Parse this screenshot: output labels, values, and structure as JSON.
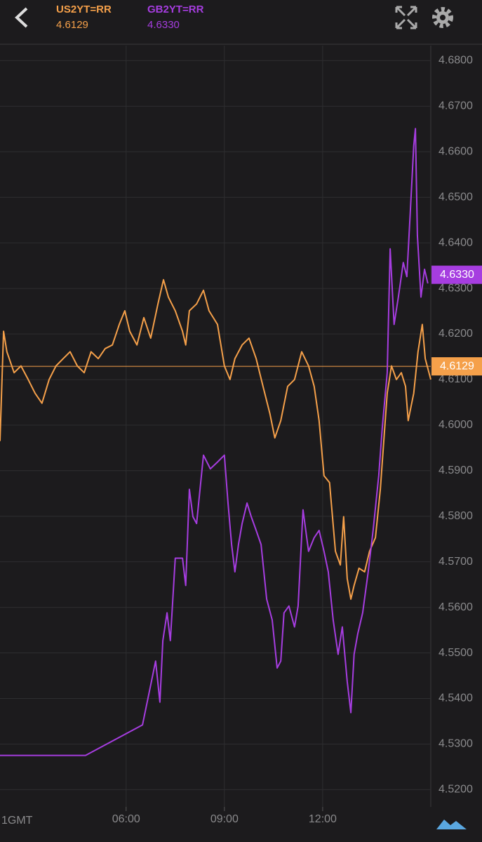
{
  "chart_data": {
    "type": "line",
    "series": [
      {
        "name": "US2YT=RR",
        "color": "#f5a04a",
        "current": 4.6129,
        "x": [
          2.15,
          2.26,
          2.36,
          2.58,
          2.79,
          3.01,
          3.22,
          3.43,
          3.65,
          3.86,
          4.08,
          4.29,
          4.51,
          4.72,
          4.93,
          5.15,
          5.36,
          5.58,
          5.79,
          5.96,
          6.11,
          6.33,
          6.54,
          6.75,
          6.97,
          7.14,
          7.29,
          7.5,
          7.72,
          7.82,
          7.93,
          8.15,
          8.36,
          8.53,
          8.79,
          9.0,
          9.17,
          9.32,
          9.54,
          9.75,
          9.97,
          10.18,
          10.39,
          10.54,
          10.72,
          10.93,
          11.14,
          11.36,
          11.57,
          11.74,
          11.89,
          12.04,
          12.21,
          12.39,
          12.54,
          12.64,
          12.75,
          12.86,
          12.96,
          13.11,
          13.28,
          13.43,
          13.61,
          13.76,
          13.88,
          13.97,
          14.1,
          14.25,
          14.4,
          14.53,
          14.61,
          14.78,
          14.91,
          15.04,
          15.13,
          15.3
        ],
        "values": [
          4.5965,
          4.6206,
          4.6161,
          4.6115,
          4.613,
          4.61,
          4.607,
          4.6048,
          4.61,
          4.613,
          4.6146,
          4.6161,
          4.613,
          4.6115,
          4.6161,
          4.6146,
          4.6168,
          4.6176,
          4.6221,
          4.6251,
          4.6206,
          4.6176,
          4.6236,
          4.6191,
          4.6266,
          4.6319,
          4.6281,
          4.6251,
          4.6206,
          4.6176,
          4.6251,
          4.6266,
          4.6296,
          4.6251,
          4.6221,
          4.613,
          4.61,
          4.6146,
          4.6176,
          4.6191,
          4.6146,
          4.6085,
          4.6025,
          4.5972,
          4.601,
          4.6085,
          4.61,
          4.6161,
          4.613,
          4.6085,
          4.601,
          4.5889,
          4.5874,
          4.5723,
          4.5693,
          4.5799,
          4.5663,
          4.5618,
          4.5648,
          4.5686,
          4.5678,
          4.5723,
          4.5753,
          4.5859,
          4.598,
          4.607,
          4.613,
          4.61,
          4.6115,
          4.6085,
          4.601,
          4.607,
          4.6161,
          4.6221,
          4.6146,
          4.61
        ]
      },
      {
        "name": "GB2YT=RR",
        "color": "#a63de0",
        "current": 4.633,
        "current_label": "4.6330",
        "x": [
          2.15,
          4.76,
          6.5,
          6.9,
          7.03,
          7.12,
          7.25,
          7.35,
          7.5,
          7.72,
          7.82,
          7.93,
          8.04,
          8.15,
          8.36,
          8.57,
          8.79,
          9.0,
          9.11,
          9.22,
          9.32,
          9.43,
          9.54,
          9.69,
          9.82,
          9.97,
          10.12,
          10.29,
          10.46,
          10.61,
          10.72,
          10.82,
          10.97,
          11.14,
          11.25,
          11.4,
          11.57,
          11.74,
          11.89,
          12.04,
          12.17,
          12.32,
          12.47,
          12.6,
          12.75,
          12.86,
          12.96,
          13.07,
          13.22,
          13.39,
          13.54,
          13.71,
          13.82,
          13.97,
          14.06,
          14.18,
          14.31,
          14.46,
          14.57,
          14.68,
          14.78,
          14.83,
          14.89,
          15.0,
          15.11,
          15.21
        ],
        "values": [
          4.5275,
          4.5275,
          4.5342,
          4.5482,
          4.5392,
          4.5527,
          4.5588,
          4.5527,
          4.5708,
          4.5708,
          4.5648,
          4.5859,
          4.5799,
          4.5784,
          4.5934,
          4.5904,
          4.5919,
          4.5934,
          4.5829,
          4.5738,
          4.5678,
          4.5738,
          4.5784,
          4.5829,
          4.5799,
          4.5769,
          4.5738,
          4.5618,
          4.5572,
          4.5467,
          4.5482,
          4.5588,
          4.5603,
          4.5557,
          4.5603,
          4.5814,
          4.5723,
          4.5753,
          4.5769,
          4.5723,
          4.5678,
          4.5572,
          4.5497,
          4.5557,
          4.5437,
          4.5369,
          4.5497,
          4.5542,
          4.5588,
          4.5678,
          4.5769,
          4.5889,
          4.5995,
          4.6115,
          4.6387,
          4.6221,
          4.6281,
          4.6357,
          4.6326,
          4.6477,
          4.6613,
          4.6651,
          4.6417,
          4.6281,
          4.6342,
          4.6311
        ]
      }
    ],
    "xlim": [
      2.15,
      15.3
    ],
    "xticks": [
      {
        "value": 6,
        "label": "06:00"
      },
      {
        "value": 9,
        "label": "09:00"
      },
      {
        "value": 12,
        "label": "12:00"
      }
    ],
    "xlabel": "1GMT",
    "ylim": [
      4.5162,
      4.6833
    ],
    "yticks": [
      {
        "value": 4.52,
        "label": "4.5200"
      },
      {
        "value": 4.53,
        "label": "4.5300"
      },
      {
        "value": 4.54,
        "label": "4.5400"
      },
      {
        "value": 4.55,
        "label": "4.5500"
      },
      {
        "value": 4.56,
        "label": "4.5600"
      },
      {
        "value": 4.57,
        "label": "4.5700"
      },
      {
        "value": 4.58,
        "label": "4.5800"
      },
      {
        "value": 4.59,
        "label": "4.5900"
      },
      {
        "value": 4.6,
        "label": "4.6000"
      },
      {
        "value": 4.61,
        "label": "4.6100"
      },
      {
        "value": 4.62,
        "label": "4.6200"
      },
      {
        "value": 4.63,
        "label": "4.6300"
      },
      {
        "value": 4.64,
        "label": "4.6400"
      },
      {
        "value": 4.65,
        "label": "4.6500"
      },
      {
        "value": 4.66,
        "label": "4.6600"
      },
      {
        "value": 4.67,
        "label": "4.6700"
      },
      {
        "value": 4.68,
        "label": "4.6800"
      }
    ],
    "grid": true
  }
}
